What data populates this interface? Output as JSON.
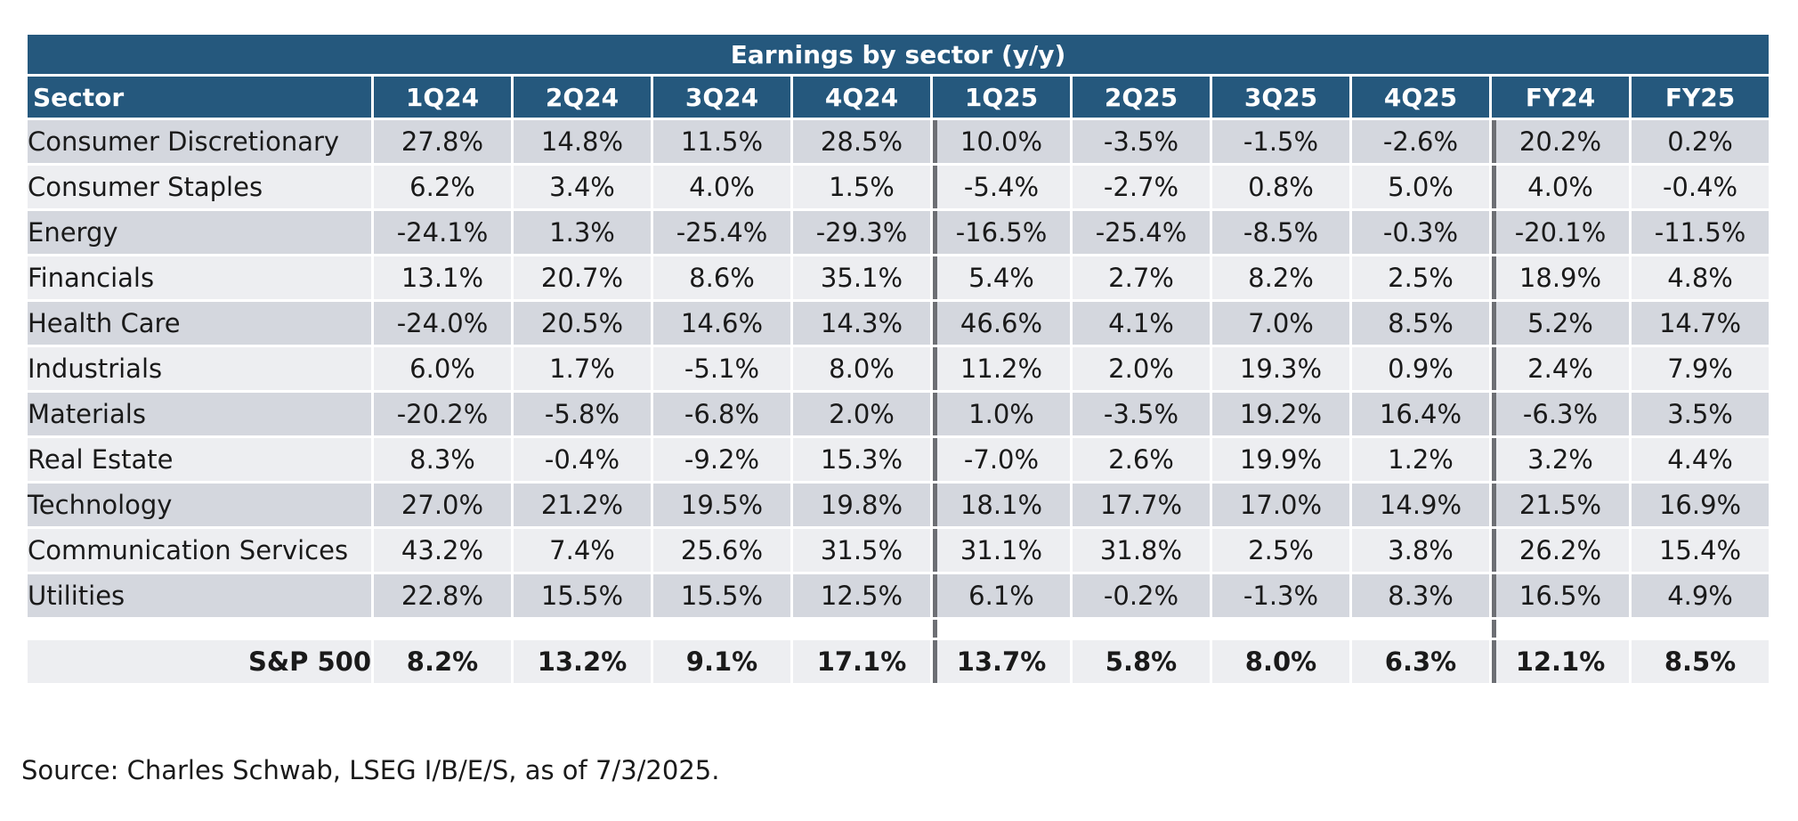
{
  "chart_data": {
    "type": "table",
    "title": "Earnings by sector (y/y)",
    "columns": [
      "Sector",
      "1Q24",
      "2Q24",
      "3Q24",
      "4Q24",
      "1Q25",
      "2Q25",
      "3Q25",
      "4Q25",
      "FY24",
      "FY25"
    ],
    "rows": [
      {
        "sector": "Consumer Discretionary",
        "values": [
          "27.8%",
          "14.8%",
          "11.5%",
          "28.5%",
          "10.0%",
          "-3.5%",
          "-1.5%",
          "-2.6%",
          "20.2%",
          "0.2%"
        ]
      },
      {
        "sector": "Consumer Staples",
        "values": [
          "6.2%",
          "3.4%",
          "4.0%",
          "1.5%",
          "-5.4%",
          "-2.7%",
          "0.8%",
          "5.0%",
          "4.0%",
          "-0.4%"
        ]
      },
      {
        "sector": "Energy",
        "values": [
          "-24.1%",
          "1.3%",
          "-25.4%",
          "-29.3%",
          "-16.5%",
          "-25.4%",
          "-8.5%",
          "-0.3%",
          "-20.1%",
          "-11.5%"
        ]
      },
      {
        "sector": "Financials",
        "values": [
          "13.1%",
          "20.7%",
          "8.6%",
          "35.1%",
          "5.4%",
          "2.7%",
          "8.2%",
          "2.5%",
          "18.9%",
          "4.8%"
        ]
      },
      {
        "sector": "Health Care",
        "values": [
          "-24.0%",
          "20.5%",
          "14.6%",
          "14.3%",
          "46.6%",
          "4.1%",
          "7.0%",
          "8.5%",
          "5.2%",
          "14.7%"
        ]
      },
      {
        "sector": "Industrials",
        "values": [
          "6.0%",
          "1.7%",
          "-5.1%",
          "8.0%",
          "11.2%",
          "2.0%",
          "19.3%",
          "0.9%",
          "2.4%",
          "7.9%"
        ]
      },
      {
        "sector": "Materials",
        "values": [
          "-20.2%",
          "-5.8%",
          "-6.8%",
          "2.0%",
          "1.0%",
          "-3.5%",
          "19.2%",
          "16.4%",
          "-6.3%",
          "3.5%"
        ]
      },
      {
        "sector": "Real Estate",
        "values": [
          "8.3%",
          "-0.4%",
          "-9.2%",
          "15.3%",
          "-7.0%",
          "2.6%",
          "19.9%",
          "1.2%",
          "3.2%",
          "4.4%"
        ]
      },
      {
        "sector": "Technology",
        "values": [
          "27.0%",
          "21.2%",
          "19.5%",
          "19.8%",
          "18.1%",
          "17.7%",
          "17.0%",
          "14.9%",
          "21.5%",
          "16.9%"
        ]
      },
      {
        "sector": "Communication Services",
        "values": [
          "43.2%",
          "7.4%",
          "25.6%",
          "31.5%",
          "31.1%",
          "31.8%",
          "2.5%",
          "3.8%",
          "26.2%",
          "15.4%"
        ]
      },
      {
        "sector": "Utilities",
        "values": [
          "22.8%",
          "15.5%",
          "15.5%",
          "12.5%",
          "6.1%",
          "-0.2%",
          "-1.3%",
          "8.3%",
          "16.5%",
          "4.9%"
        ]
      }
    ],
    "total": {
      "sector": "S&P 500",
      "values": [
        "8.2%",
        "13.2%",
        "9.1%",
        "17.1%",
        "13.7%",
        "5.8%",
        "8.0%",
        "6.3%",
        "12.1%",
        "8.5%"
      ]
    },
    "source": "Source: Charles Schwab, LSEG I/B/E/S, as of 7/3/2025."
  },
  "colors": {
    "header_bg": "#25587d",
    "row_dark": "#d4d7de",
    "row_light": "#edeef1",
    "divider": "#6d6f74"
  }
}
